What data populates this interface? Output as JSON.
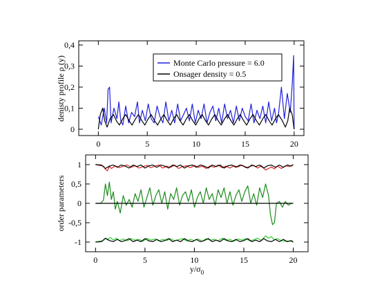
{
  "chart_data": [
    {
      "type": "line",
      "ylabel": "denisty profile ρ (y)",
      "xlim": [
        -2,
        21
      ],
      "ylim": [
        -0.03,
        0.42
      ],
      "xticks": [
        0,
        5,
        10,
        15,
        20
      ],
      "xtick_labels": [
        "0",
        "5",
        "10",
        "15",
        "20"
      ],
      "yticks": [
        0,
        0.1,
        0.2,
        0.3,
        0.4
      ],
      "ytick_labels": [
        "0",
        "0,1",
        "0,2",
        "0,3",
        "0,4"
      ],
      "grid": false,
      "legend_position": "top-center",
      "series": [
        {
          "name": "Monte Carlo pressure = 6.0",
          "color": "#1f1fdc",
          "x": [
            0.0,
            0.3,
            0.6,
            0.85,
            1.0,
            1.15,
            1.3,
            1.6,
            1.9,
            2.1,
            2.3,
            2.5,
            2.8,
            3.1,
            3.4,
            3.7,
            4.0,
            4.2,
            4.5,
            4.8,
            5.1,
            5.4,
            5.7,
            6.0,
            6.3,
            6.6,
            6.9,
            7.2,
            7.5,
            7.8,
            8.1,
            8.4,
            8.7,
            9.0,
            9.3,
            9.6,
            9.9,
            10.2,
            10.5,
            10.8,
            11.1,
            11.4,
            11.7,
            12.0,
            12.3,
            12.6,
            12.9,
            13.2,
            13.5,
            13.8,
            14.1,
            14.4,
            14.7,
            15.0,
            15.3,
            15.6,
            15.9,
            16.2,
            16.5,
            16.8,
            17.1,
            17.4,
            17.7,
            18.0,
            18.2,
            18.4,
            18.7,
            19.0,
            19.3,
            19.6,
            19.8,
            19.95,
            20.0
          ],
          "y": [
            0.06,
            0.02,
            0.1,
            0.03,
            0.19,
            0.2,
            0.03,
            0.1,
            0.05,
            0.13,
            0.04,
            0.02,
            0.11,
            0.03,
            0.08,
            0.06,
            0.13,
            0.03,
            0.09,
            0.04,
            0.12,
            0.05,
            0.03,
            0.11,
            0.06,
            0.03,
            0.13,
            0.04,
            0.09,
            0.03,
            0.12,
            0.04,
            0.07,
            0.1,
            0.04,
            0.12,
            0.03,
            0.09,
            0.05,
            0.12,
            0.03,
            0.08,
            0.11,
            0.04,
            0.1,
            0.03,
            0.12,
            0.05,
            0.09,
            0.03,
            0.11,
            0.04,
            0.1,
            0.06,
            0.04,
            0.12,
            0.03,
            0.09,
            0.05,
            0.11,
            0.03,
            0.13,
            0.04,
            0.1,
            0.03,
            0.07,
            0.2,
            0.05,
            0.17,
            0.08,
            0.21,
            0.35,
            0.0
          ]
        },
        {
          "name": "Onsager density = 0.5",
          "color": "#000000",
          "x": [
            0.0,
            0.2,
            0.45,
            0.65,
            0.9,
            1.2,
            1.55,
            1.85,
            2.15,
            2.5,
            2.8,
            3.15,
            3.45,
            3.8,
            4.1,
            4.45,
            4.75,
            5.1,
            5.4,
            5.75,
            6.05,
            6.4,
            6.7,
            7.05,
            7.35,
            7.7,
            8.0,
            8.35,
            8.65,
            9.0,
            9.3,
            9.65,
            9.95,
            10.3,
            10.6,
            10.95,
            11.25,
            11.6,
            11.9,
            12.25,
            12.55,
            12.9,
            13.2,
            13.55,
            13.85,
            14.2,
            14.5,
            14.85,
            15.15,
            15.5,
            15.8,
            16.15,
            16.45,
            16.8,
            17.1,
            17.45,
            17.75,
            18.1,
            18.4,
            18.8,
            19.1,
            19.35,
            19.55,
            19.8,
            20.0
          ],
          "y": [
            0.0,
            0.07,
            0.1,
            0.04,
            0.01,
            0.05,
            0.07,
            0.04,
            0.02,
            0.05,
            0.07,
            0.04,
            0.02,
            0.05,
            0.07,
            0.04,
            0.02,
            0.05,
            0.07,
            0.04,
            0.02,
            0.05,
            0.07,
            0.04,
            0.02,
            0.05,
            0.07,
            0.04,
            0.02,
            0.05,
            0.07,
            0.04,
            0.02,
            0.05,
            0.07,
            0.04,
            0.02,
            0.05,
            0.07,
            0.04,
            0.02,
            0.05,
            0.07,
            0.04,
            0.02,
            0.05,
            0.07,
            0.04,
            0.02,
            0.05,
            0.07,
            0.04,
            0.02,
            0.05,
            0.07,
            0.04,
            0.02,
            0.05,
            0.07,
            0.04,
            0.01,
            0.04,
            0.1,
            0.07,
            0.0
          ]
        }
      ]
    },
    {
      "type": "line",
      "xlabel": "y/σ",
      "xlabel_sub": "0",
      "ylabel": "order parameters",
      "xlim": [
        -1,
        21.5
      ],
      "ylim": [
        -1.25,
        1.25
      ],
      "xticks": [
        0,
        5,
        10,
        15,
        20
      ],
      "xtick_labels": [
        "0",
        "5",
        "10",
        "15",
        "20"
      ],
      "yticks": [
        -1,
        -0.5,
        0,
        0.5,
        1
      ],
      "ytick_labels": [
        "-1",
        "-0,5",
        "0",
        "0,5",
        "1"
      ],
      "grid": false,
      "series": [
        {
          "color": "#e02020",
          "x": [
            0.0,
            0.4,
            0.8,
            1.0,
            1.2,
            1.4,
            1.6,
            2.0,
            2.4,
            2.8,
            3.2,
            3.6,
            4.0,
            4.4,
            4.8,
            5.2,
            5.6,
            6.0,
            6.4,
            6.8,
            7.2,
            7.6,
            8.0,
            8.4,
            8.8,
            9.2,
            9.6,
            10.0,
            10.4,
            10.8,
            11.2,
            11.6,
            12.0,
            12.4,
            12.8,
            13.2,
            13.6,
            14.0,
            14.4,
            14.8,
            15.2,
            15.6,
            16.0,
            16.4,
            16.8,
            17.2,
            17.5,
            17.8,
            18.1,
            18.4,
            18.8,
            19.2,
            19.6,
            20.0
          ],
          "y": [
            1.0,
            0.98,
            0.96,
            0.88,
            0.84,
            0.95,
            0.9,
            0.97,
            0.92,
            0.96,
            0.99,
            0.93,
            0.97,
            0.91,
            0.95,
            0.98,
            0.92,
            0.96,
            0.99,
            0.91,
            0.96,
            0.93,
            0.99,
            0.9,
            0.95,
            0.97,
            0.92,
            0.98,
            0.93,
            0.96,
            0.9,
            0.97,
            0.93,
            0.99,
            0.92,
            0.96,
            0.91,
            0.97,
            0.94,
            0.99,
            0.92,
            0.95,
            0.98,
            0.91,
            0.97,
            0.86,
            0.9,
            0.94,
            0.89,
            0.96,
            0.9,
            0.97,
            0.95,
            1.0
          ]
        },
        {
          "color": "#000000",
          "x": [
            0.0,
            0.6,
            1.0,
            1.4,
            1.8,
            2.2,
            2.6,
            3.0,
            3.4,
            3.8,
            4.2,
            4.6,
            5.0,
            5.4,
            5.8,
            6.2,
            6.6,
            7.0,
            7.4,
            7.8,
            8.2,
            8.6,
            9.0,
            9.4,
            9.8,
            10.2,
            10.6,
            11.0,
            11.4,
            11.8,
            12.2,
            12.6,
            13.0,
            13.4,
            13.8,
            14.2,
            14.6,
            15.0,
            15.4,
            15.8,
            16.2,
            16.6,
            17.0,
            17.4,
            17.8,
            18.2,
            18.6,
            19.0,
            19.4,
            19.8,
            20.0
          ],
          "y": [
            1.0,
            0.99,
            0.9,
            0.96,
            0.99,
            0.93,
            0.99,
            0.96,
            0.91,
            0.99,
            0.95,
            0.99,
            0.91,
            0.97,
            0.99,
            0.93,
            0.99,
            0.96,
            0.91,
            0.99,
            0.95,
            0.99,
            0.91,
            0.97,
            0.99,
            0.93,
            0.99,
            0.96,
            0.91,
            0.99,
            0.95,
            0.99,
            0.91,
            0.97,
            0.99,
            0.93,
            0.99,
            0.96,
            0.91,
            0.99,
            0.95,
            0.99,
            0.91,
            0.97,
            0.99,
            0.93,
            0.99,
            0.93,
            0.99,
            0.96,
            1.0
          ]
        },
        {
          "color": "#1a8a1a",
          "x": [
            0.0,
            0.5,
            0.8,
            1.0,
            1.2,
            1.4,
            1.6,
            1.8,
            2.0,
            2.2,
            2.5,
            2.8,
            3.1,
            3.4,
            3.7,
            4.0,
            4.3,
            4.6,
            4.9,
            5.2,
            5.5,
            5.8,
            6.1,
            6.4,
            6.7,
            7.0,
            7.3,
            7.6,
            7.9,
            8.2,
            8.5,
            8.8,
            9.1,
            9.4,
            9.7,
            10.0,
            10.3,
            10.6,
            10.9,
            11.2,
            11.5,
            11.8,
            12.1,
            12.4,
            12.7,
            13.0,
            13.3,
            13.6,
            13.9,
            14.2,
            14.5,
            14.8,
            15.1,
            15.4,
            15.7,
            16.0,
            16.3,
            16.6,
            16.9,
            17.2,
            17.5,
            17.7,
            17.9,
            18.1,
            18.3,
            18.6,
            18.9,
            19.2,
            19.5,
            19.8,
            20.0
          ],
          "y": [
            0.0,
            0.0,
            0.08,
            0.5,
            0.2,
            0.55,
            0.1,
            0.3,
            -0.15,
            0.05,
            -0.25,
            0.2,
            -0.05,
            0.1,
            -0.1,
            0.25,
            0.05,
            0.35,
            -0.1,
            0.15,
            0.4,
            -0.05,
            0.2,
            0.35,
            0.0,
            0.3,
            -0.15,
            0.25,
            0.1,
            0.4,
            -0.05,
            0.2,
            0.3,
            0.05,
            0.35,
            -0.1,
            0.15,
            0.3,
            0.0,
            0.4,
            0.1,
            0.25,
            -0.05,
            0.35,
            0.15,
            0.4,
            0.0,
            0.3,
            -0.05,
            0.2,
            0.35,
            0.05,
            0.3,
            0.45,
            0.0,
            0.25,
            -0.05,
            0.4,
            0.15,
            0.5,
            0.2,
            -0.3,
            -0.55,
            -0.5,
            0.0,
            0.05,
            -0.1,
            0.05,
            -0.05,
            0.0,
            0.0
          ]
        },
        {
          "color": "#000000",
          "x": [
            0.0,
            20.0
          ],
          "y": [
            0.0,
            0.0
          ]
        },
        {
          "color": "#2ed12e",
          "x": [
            0.0,
            0.4,
            0.8,
            1.0,
            1.2,
            1.5,
            1.8,
            2.1,
            2.4,
            2.8,
            3.2,
            3.6,
            4.0,
            4.4,
            4.8,
            5.2,
            5.6,
            6.0,
            6.4,
            6.8,
            7.2,
            7.6,
            8.0,
            8.4,
            8.8,
            9.2,
            9.6,
            10.0,
            10.4,
            10.8,
            11.2,
            11.6,
            12.0,
            12.4,
            12.8,
            13.2,
            13.6,
            14.0,
            14.4,
            14.8,
            15.2,
            15.6,
            16.0,
            16.4,
            16.8,
            17.2,
            17.5,
            17.8,
            18.1,
            18.4,
            18.8,
            19.2,
            19.6,
            20.0
          ],
          "y": [
            -1.0,
            -0.98,
            -0.96,
            -0.9,
            -0.94,
            -0.88,
            -0.95,
            -0.9,
            -0.96,
            -0.92,
            -0.97,
            -0.91,
            -0.95,
            -0.93,
            -0.98,
            -0.9,
            -0.95,
            -0.92,
            -0.97,
            -0.93,
            -0.96,
            -0.91,
            -0.97,
            -0.94,
            -0.91,
            -0.97,
            -0.93,
            -0.96,
            -0.92,
            -0.98,
            -0.91,
            -0.95,
            -0.93,
            -0.97,
            -0.9,
            -0.96,
            -0.93,
            -0.98,
            -0.92,
            -0.95,
            -0.91,
            -0.97,
            -0.94,
            -0.9,
            -0.96,
            -0.84,
            -0.9,
            -0.86,
            -0.95,
            -0.91,
            -0.96,
            -0.98,
            -0.97,
            -1.0
          ]
        },
        {
          "color": "#000000",
          "x": [
            0.0,
            0.6,
            1.0,
            1.4,
            1.8,
            2.2,
            2.6,
            3.0,
            3.4,
            3.8,
            4.2,
            4.6,
            5.0,
            5.4,
            5.8,
            6.2,
            6.6,
            7.0,
            7.4,
            7.8,
            8.2,
            8.6,
            9.0,
            9.4,
            9.8,
            10.2,
            10.6,
            11.0,
            11.4,
            11.8,
            12.2,
            12.6,
            13.0,
            13.4,
            13.8,
            14.2,
            14.6,
            15.0,
            15.4,
            15.8,
            16.2,
            16.6,
            17.0,
            17.4,
            17.8,
            18.2,
            18.6,
            19.0,
            19.4,
            19.8,
            20.0
          ],
          "y": [
            -1.0,
            -0.99,
            -0.9,
            -0.96,
            -0.99,
            -0.93,
            -0.99,
            -0.96,
            -0.91,
            -0.99,
            -0.95,
            -0.99,
            -0.91,
            -0.97,
            -0.99,
            -0.93,
            -0.99,
            -0.96,
            -0.91,
            -0.99,
            -0.95,
            -0.99,
            -0.91,
            -0.97,
            -0.99,
            -0.93,
            -0.99,
            -0.96,
            -0.91,
            -0.99,
            -0.95,
            -0.99,
            -0.91,
            -0.97,
            -0.99,
            -0.93,
            -0.99,
            -0.96,
            -0.91,
            -0.99,
            -0.95,
            -0.99,
            -0.91,
            -0.97,
            -0.99,
            -0.93,
            -0.99,
            -0.93,
            -0.99,
            -0.96,
            -1.0
          ]
        }
      ]
    }
  ]
}
